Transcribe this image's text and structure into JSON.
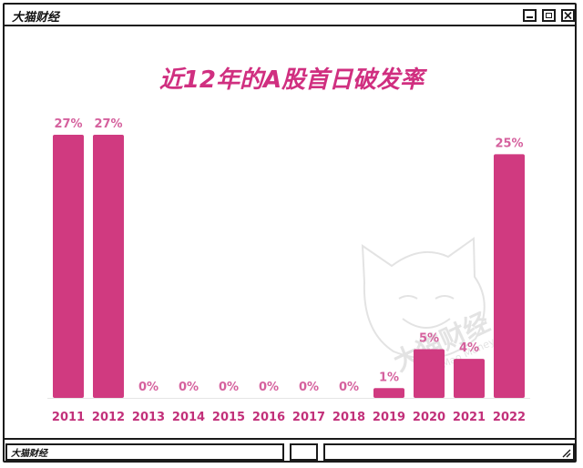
{
  "window": {
    "title": "大猫财经",
    "status_title": "大猫财经"
  },
  "colors": {
    "bar": "#d03a80",
    "value_label": "#d5609d",
    "category_label": "#c2307a",
    "title": "#d02f80"
  },
  "icons": [
    "minimize-icon",
    "maximize-icon",
    "close-icon",
    "resize-grip-icon"
  ],
  "watermark": {
    "cn": "大猫财经",
    "en": "Da Mao Money"
  },
  "chart_data": {
    "type": "bar",
    "title": "近12年的A股首日破发率",
    "categories": [
      "2011",
      "2012",
      "2013",
      "2014",
      "2015",
      "2016",
      "2017",
      "2018",
      "2019",
      "2020",
      "2021",
      "2022"
    ],
    "values": [
      27,
      27,
      0,
      0,
      0,
      0,
      0,
      0,
      1,
      5,
      4,
      25
    ],
    "value_labels": [
      "27%",
      "27%",
      "0%",
      "0%",
      "0%",
      "0%",
      "0%",
      "0%",
      "1%",
      "5%",
      "4%",
      "25%"
    ],
    "unit": "%",
    "ylim": [
      0,
      30
    ],
    "grid": false,
    "legend": "none"
  }
}
